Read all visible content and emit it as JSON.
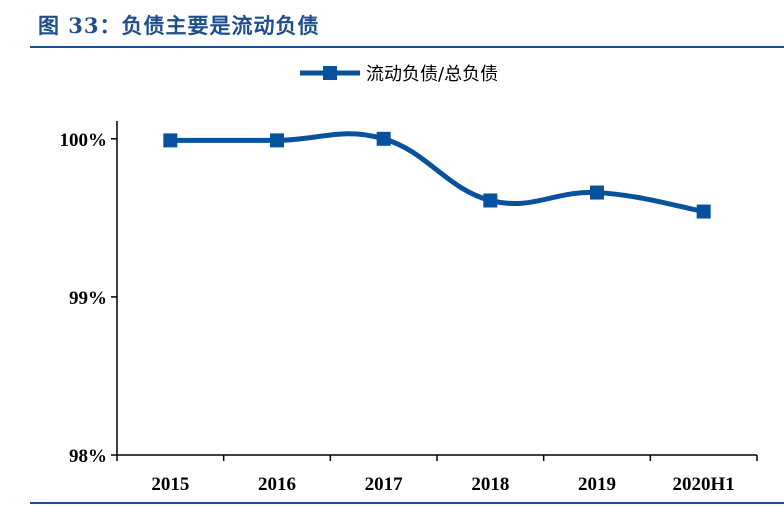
{
  "figure": {
    "title": "图 33：负债主要是流动负债"
  },
  "colors": {
    "accent": "#1f4e8c",
    "series": "#08519c"
  },
  "chart_data": {
    "type": "line",
    "title": "",
    "xlabel": "",
    "ylabel": "",
    "categories": [
      "2015",
      "2016",
      "2017",
      "2018",
      "2019",
      "2020H1"
    ],
    "series": [
      {
        "name": "流动负债/总负债",
        "values": [
          99.99,
          99.99,
          100.0,
          99.61,
          99.66,
          99.54
        ]
      }
    ],
    "ylim": [
      98,
      100.1
    ],
    "yticks": [
      98,
      99,
      100
    ],
    "ytick_labels": [
      "98%",
      "99%",
      "100%"
    ],
    "grid": false,
    "legend_position": "top",
    "marker": "square",
    "smooth": true
  }
}
